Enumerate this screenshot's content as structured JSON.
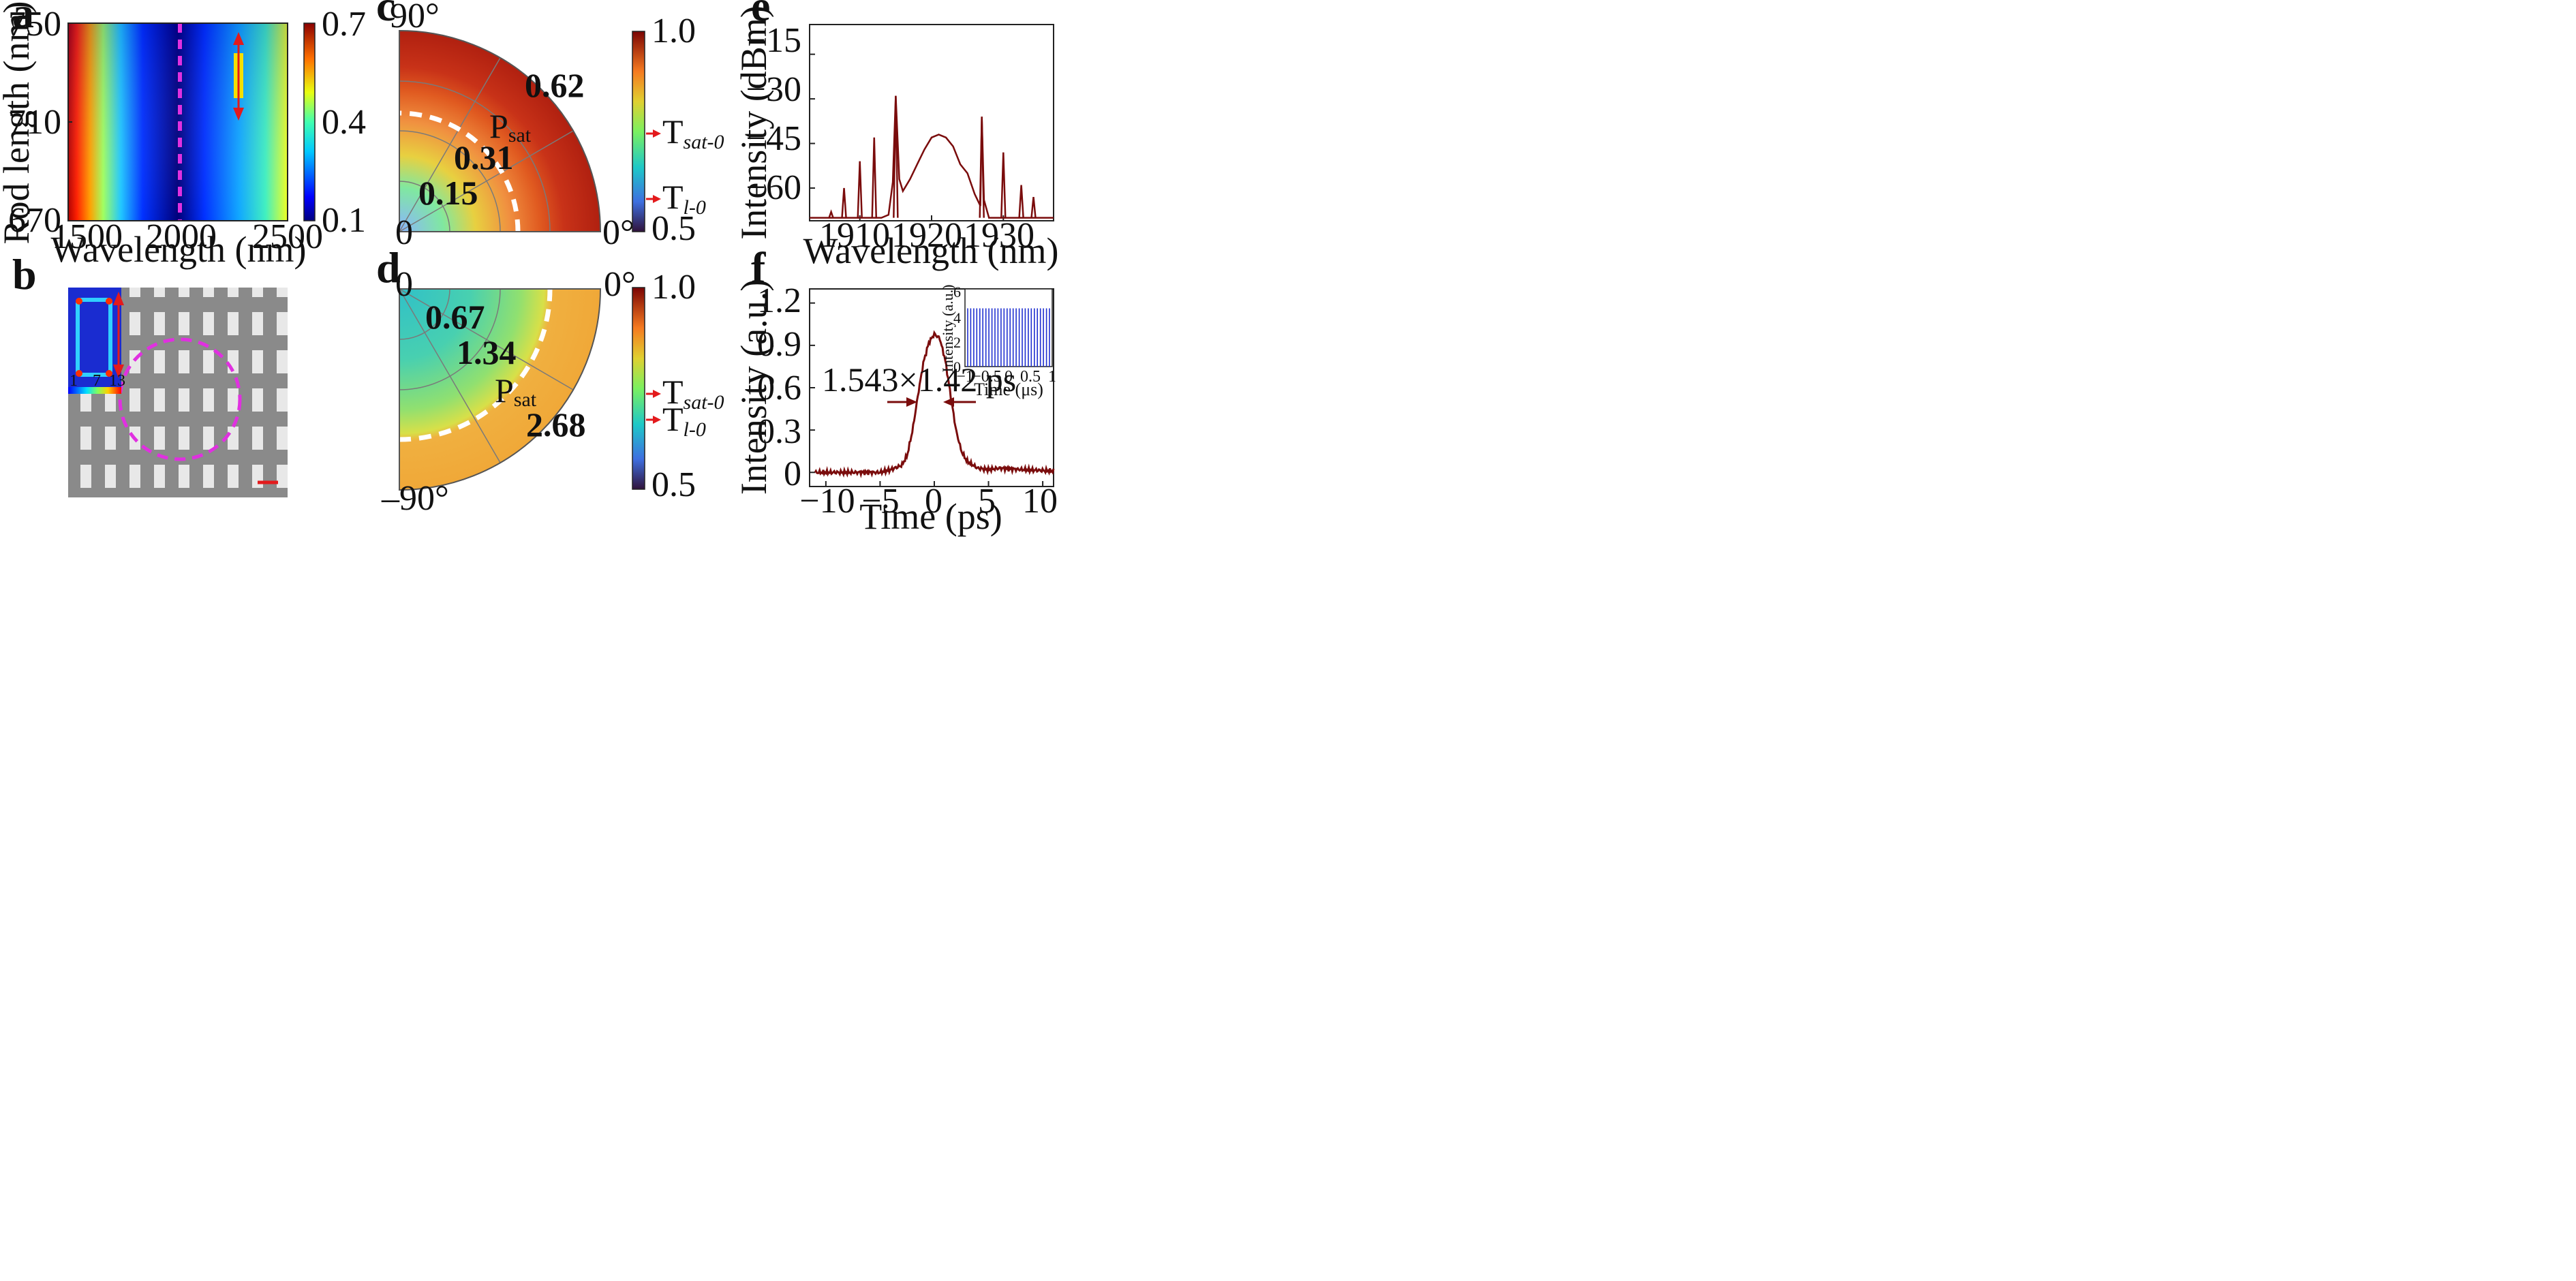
{
  "panels": {
    "a": {
      "label": "a",
      "xlabel": "Wavelength (nm)",
      "ylabel": "Rod length (nm)",
      "xticks": [
        "1500",
        "2000",
        "2500"
      ],
      "yticks": [
        "670",
        "710",
        "750"
      ],
      "colorbar_ticks": [
        "0.1",
        "0.4",
        "0.7"
      ]
    },
    "b": {
      "label": "b",
      "inset_ticks": [
        "1",
        "7",
        "13"
      ]
    },
    "c": {
      "label": "c",
      "angle_labels": [
        "90°",
        "0",
        "0°"
      ],
      "ring_labels": [
        "0.15",
        "0.31",
        "0.62"
      ],
      "psat_main": "P",
      "psat_sub": "sat",
      "colorbar_ticks": [
        "1.0",
        "0.5"
      ],
      "marker_sat": {
        "main": "T",
        "sub": "sat-0"
      },
      "marker_l": {
        "main": "T",
        "sub": "l-0"
      }
    },
    "d": {
      "label": "d",
      "angle_labels": [
        "0",
        "0°",
        "–90°"
      ],
      "ring_labels": [
        "0.67",
        "1.34",
        "2.68"
      ],
      "psat_main": "P",
      "psat_sub": "sat",
      "colorbar_ticks": [
        "1.0",
        "0.5"
      ],
      "marker_sat": {
        "main": "T",
        "sub": "sat-0"
      },
      "marker_l": {
        "main": "T",
        "sub": "l-0"
      }
    },
    "e": {
      "label": "e",
      "xlabel": "Wavelength (nm)",
      "ylabel": "Intensity (dBm)",
      "xticks": [
        "1910",
        "1920",
        "1930"
      ],
      "yticks": [
        "−15",
        "−30",
        "−45",
        "−60"
      ]
    },
    "f": {
      "label": "f",
      "xlabel": "Time (ps)",
      "ylabel": "Intensity (a.u.)",
      "xticks": [
        "−10",
        "−5",
        "0",
        "5",
        "10"
      ],
      "yticks": [
        "0",
        "0.3",
        "0.6",
        "0.9",
        "1.2"
      ],
      "annotation": "1.543×1.42 ps",
      "inset": {
        "xlabel": "Time (μs)",
        "ylabel": "Intensity (a.u.)",
        "xticks": [
          "−1",
          "−0.5",
          "0",
          "0.5",
          "1"
        ],
        "yticks": [
          "0",
          "2",
          "4",
          "6"
        ]
      }
    }
  },
  "colors": {
    "curve_red": "#7a0c0c",
    "pulse_blue": "#1f2fd0",
    "magenta": "#e030e0",
    "arrow_red": "#e31a1c",
    "bar_yellow": "#f5e000"
  },
  "chart_data": [
    {
      "type": "heatmap",
      "xlabel": "Wavelength (nm)",
      "ylabel": "Rod length (nm)",
      "xlim": [
        1460,
        2500
      ],
      "ylim": [
        670,
        750
      ],
      "colorbar_range": [
        0.1,
        0.7
      ],
      "colormap": "jet",
      "dashed_line_x": 2000,
      "minimum_curve": [
        [
          2000,
          670
        ],
        [
          2000,
          750
        ]
      ]
    },
    {
      "type": "line",
      "xlabel": "Wavelength (nm)",
      "ylabel": "Intensity (dBm)",
      "xlim": [
        1903,
        1937
      ],
      "ylim": [
        -71,
        -5
      ],
      "series": [
        {
          "x": [
            1903,
            1906,
            1908,
            1910,
            1912,
            1913,
            1914,
            1914.6,
            1915,
            1915.5,
            1916,
            1917,
            1918,
            1919,
            1920,
            1921,
            1922,
            1923,
            1924,
            1925,
            1926,
            1926.8,
            1927,
            1927.3,
            1928,
            1929,
            1930,
            1931,
            1932,
            1933,
            1934,
            1935,
            1937
          ],
          "y": [
            -70,
            -70,
            -70,
            -70,
            -70,
            -70,
            -69,
            -58,
            -29,
            -57,
            -61,
            -57,
            -52,
            -47,
            -43,
            -42,
            -43,
            -46,
            -52,
            -55,
            -62,
            -66,
            -36,
            -64,
            -70,
            -70,
            -70,
            -70,
            -70,
            -70,
            -70,
            -70,
            -70
          ]
        }
      ],
      "peaks": [
        {
          "x": 1906,
          "y": -68
        },
        {
          "x": 1907.8,
          "y": -60
        },
        {
          "x": 1910,
          "y": -51
        },
        {
          "x": 1912,
          "y": -43
        },
        {
          "x": 1915,
          "y": -29
        },
        {
          "x": 1927,
          "y": -36
        },
        {
          "x": 1930,
          "y": -48
        },
        {
          "x": 1932.5,
          "y": -59
        },
        {
          "x": 1934.2,
          "y": -63
        }
      ]
    },
    {
      "type": "line",
      "xlabel": "Time (ps)",
      "ylabel": "Intensity (a.u.)",
      "xlim": [
        -11.5,
        11
      ],
      "ylim": [
        -0.1,
        1.3
      ],
      "series": [
        {
          "x": [
            -11,
            -8,
            -5,
            -4,
            -3,
            -2.5,
            -2,
            -1.5,
            -1,
            -0.5,
            0,
            0.5,
            1,
            1.5,
            2,
            2.5,
            3,
            4,
            5,
            6,
            8,
            11
          ],
          "y": [
            0,
            0,
            0,
            0.02,
            0.05,
            0.12,
            0.3,
            0.55,
            0.78,
            0.92,
            0.98,
            0.95,
            0.8,
            0.55,
            0.3,
            0.15,
            0.08,
            0.03,
            0.02,
            0.03,
            0.02,
            0.01
          ]
        }
      ],
      "fwhm_ps": 1.42
    },
    {
      "type": "line",
      "xlabel": "Time (μs)",
      "ylabel": "Intensity (a.u.)",
      "xlim": [
        -1,
        1
      ],
      "ylim": [
        0,
        6
      ],
      "pulse_train": {
        "count": 28,
        "height": 4.5
      }
    }
  ]
}
